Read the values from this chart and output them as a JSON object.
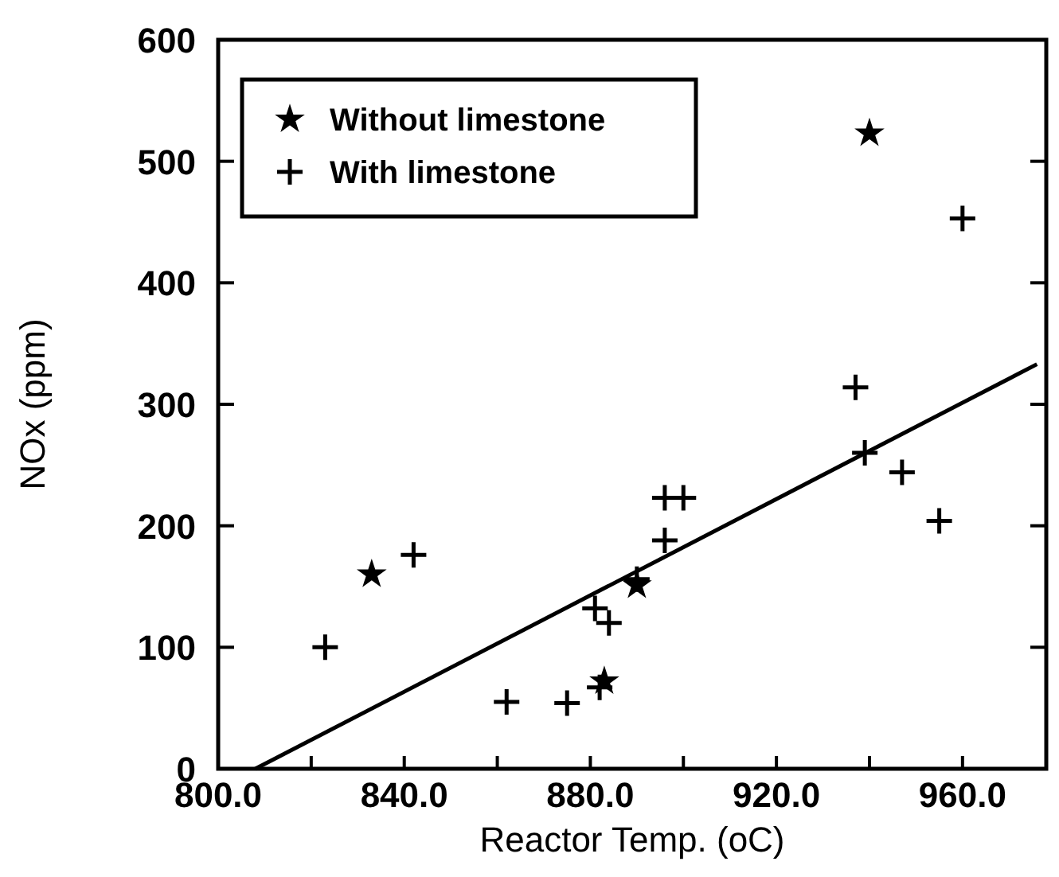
{
  "chart_data": {
    "type": "scatter",
    "xlabel": "Reactor Temp. (oC)",
    "ylabel": "NOx (ppm)",
    "xlim": [
      800,
      978
    ],
    "xticks": [
      {
        "value": 800,
        "label": "800.0"
      },
      {
        "value": 820,
        "label": null
      },
      {
        "value": 840,
        "label": "840.0"
      },
      {
        "value": 860,
        "label": null
      },
      {
        "value": 880,
        "label": "880.0"
      },
      {
        "value": 900,
        "label": null
      },
      {
        "value": 920,
        "label": "920.0"
      },
      {
        "value": 940,
        "label": null
      },
      {
        "value": 960,
        "label": "960.0"
      }
    ],
    "ylim": [
      0,
      600
    ],
    "yticks": [
      0,
      100,
      200,
      300,
      400,
      500,
      600
    ],
    "grid": false,
    "legend": "top left",
    "series": [
      {
        "name": "Without limestone",
        "marker": "star",
        "color": "#000000",
        "x": [
          833,
          883,
          890,
          940
        ],
        "values": [
          160,
          72,
          151,
          523
        ]
      },
      {
        "name": "With limestone",
        "marker": "cross",
        "color": "#000000",
        "x": [
          823,
          842,
          862,
          875,
          881,
          884,
          882,
          890,
          896,
          896,
          900,
          937,
          939,
          947,
          955,
          960
        ],
        "values": [
          100,
          176,
          55,
          54,
          132,
          120,
          67,
          156,
          188,
          223,
          223,
          314,
          260,
          244,
          204,
          453
        ]
      },
      {
        "type": "line",
        "marker": "none",
        "line_style": "solid",
        "color": "#000000",
        "x": [
          808,
          976
        ],
        "values": [
          0,
          333
        ]
      }
    ]
  }
}
